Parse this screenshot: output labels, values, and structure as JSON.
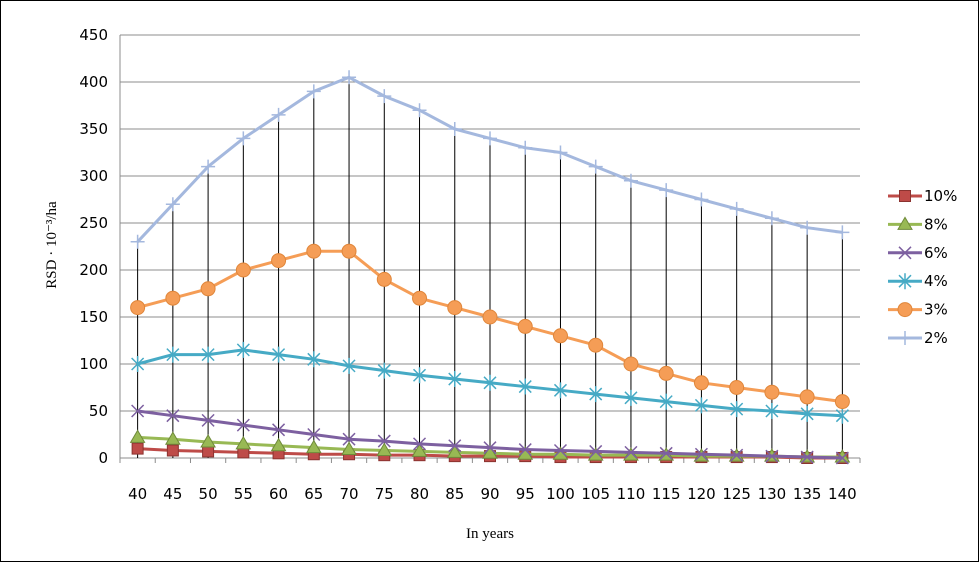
{
  "chart_data": {
    "type": "line",
    "xlabel": "In years",
    "ylabel": "RSD · 10⁻³/ha",
    "ylim": [
      0,
      450
    ],
    "yticks": [
      "0",
      "50",
      "100",
      "150",
      "200",
      "250",
      "300",
      "350",
      "400",
      "450"
    ],
    "categories": [
      "40",
      "45",
      "50",
      "55",
      "60",
      "65",
      "70",
      "75",
      "80",
      "85",
      "90",
      "95",
      "100",
      "105",
      "110",
      "115",
      "120",
      "125",
      "130",
      "135",
      "140"
    ],
    "grid": "horizontal",
    "drop_lines": true,
    "legend_position": "right",
    "series": [
      {
        "name": "10%",
        "color": "#BE4B48",
        "marker": "square",
        "values": [
          10,
          8,
          7,
          6,
          5,
          4,
          4,
          3,
          3,
          2,
          2,
          2,
          1,
          1,
          1,
          1,
          1,
          1,
          1,
          0,
          0
        ]
      },
      {
        "name": "8%",
        "color": "#98B954",
        "marker": "triangle",
        "values": [
          22,
          20,
          17,
          15,
          13,
          11,
          9,
          8,
          7,
          6,
          5,
          4,
          4,
          3,
          3,
          3,
          2,
          2,
          2,
          1,
          1
        ]
      },
      {
        "name": "6%",
        "color": "#7D60A0",
        "marker": "x",
        "values": [
          50,
          45,
          40,
          35,
          30,
          25,
          20,
          18,
          15,
          13,
          11,
          9,
          8,
          7,
          6,
          5,
          4,
          3,
          2,
          1,
          0
        ]
      },
      {
        "name": "4%",
        "color": "#46AAC5",
        "marker": "star",
        "values": [
          100,
          110,
          110,
          115,
          110,
          105,
          98,
          93,
          88,
          84,
          80,
          76,
          72,
          68,
          64,
          60,
          56,
          52,
          50,
          47,
          45
        ]
      },
      {
        "name": "3%",
        "color": "#F59D56",
        "marker": "circle",
        "values": [
          160,
          170,
          180,
          200,
          210,
          220,
          220,
          190,
          170,
          160,
          150,
          140,
          130,
          120,
          100,
          90,
          80,
          75,
          70,
          65,
          60
        ]
      },
      {
        "name": "2%",
        "color": "#A4B8DE",
        "marker": "plus",
        "values": [
          230,
          270,
          310,
          340,
          365,
          390,
          405,
          385,
          370,
          350,
          340,
          330,
          325,
          310,
          295,
          285,
          275,
          265,
          255,
          245,
          240
        ]
      }
    ]
  }
}
